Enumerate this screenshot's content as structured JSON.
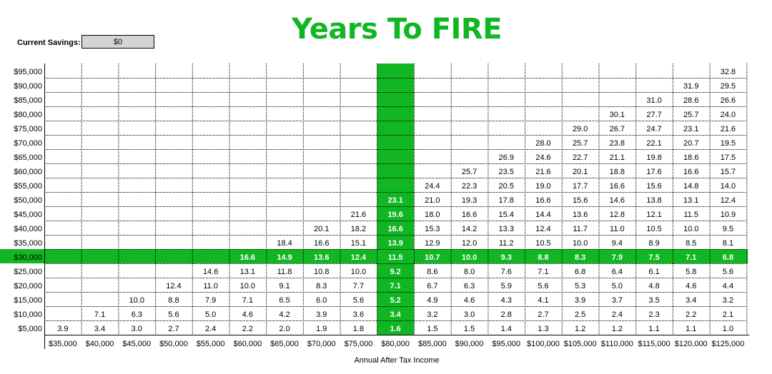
{
  "page_title": "Years To FIRE",
  "savings": {
    "label": "Current Savings:",
    "value": "$0"
  },
  "colors": {
    "highlight": "#11b623",
    "title": "#11b623"
  },
  "chart_data": {
    "type": "table",
    "title": "Years To FIRE",
    "xlabel": "Annual After Tax Income",
    "ylabel": "",
    "x": [
      "$35,000",
      "$40,000",
      "$45,000",
      "$50,000",
      "$55,000",
      "$60,000",
      "$65,000",
      "$70,000",
      "$75,000",
      "$80,000",
      "$85,000",
      "$90,000",
      "$95,000",
      "$100,000",
      "$105,000",
      "$110,000",
      "$115,000",
      "$120,000",
      "$125,000"
    ],
    "y": [
      "$95,000",
      "$90,000",
      "$85,000",
      "$80,000",
      "$75,000",
      "$70,000",
      "$65,000",
      "$60,000",
      "$55,000",
      "$50,000",
      "$45,000",
      "$40,000",
      "$35,000",
      "$30,000",
      "$25,000",
      "$20,000",
      "$15,000",
      "$10,000",
      "$5,000"
    ],
    "highlight_column": "$80,000",
    "highlight_row": "$30,000",
    "values": [
      [
        null,
        null,
        null,
        null,
        null,
        null,
        null,
        null,
        null,
        null,
        null,
        null,
        null,
        null,
        null,
        null,
        null,
        null,
        32.8
      ],
      [
        null,
        null,
        null,
        null,
        null,
        null,
        null,
        null,
        null,
        null,
        null,
        null,
        null,
        null,
        null,
        null,
        null,
        31.9,
        29.5
      ],
      [
        null,
        null,
        null,
        null,
        null,
        null,
        null,
        null,
        null,
        null,
        null,
        null,
        null,
        null,
        null,
        null,
        31.0,
        28.6,
        26.6
      ],
      [
        null,
        null,
        null,
        null,
        null,
        null,
        null,
        null,
        null,
        null,
        null,
        null,
        null,
        null,
        null,
        30.1,
        27.7,
        25.7,
        24.0
      ],
      [
        null,
        null,
        null,
        null,
        null,
        null,
        null,
        null,
        null,
        null,
        null,
        null,
        null,
        null,
        29.0,
        26.7,
        24.7,
        23.1,
        21.6
      ],
      [
        null,
        null,
        null,
        null,
        null,
        null,
        null,
        null,
        null,
        null,
        null,
        null,
        null,
        28.0,
        25.7,
        23.8,
        22.1,
        20.7,
        19.5
      ],
      [
        null,
        null,
        null,
        null,
        null,
        null,
        null,
        null,
        null,
        null,
        null,
        null,
        26.9,
        24.6,
        22.7,
        21.1,
        19.8,
        18.6,
        17.5
      ],
      [
        null,
        null,
        null,
        null,
        null,
        null,
        null,
        null,
        null,
        null,
        null,
        25.7,
        23.5,
        21.6,
        20.1,
        18.8,
        17.6,
        16.6,
        15.7
      ],
      [
        null,
        null,
        null,
        null,
        null,
        null,
        null,
        null,
        null,
        null,
        24.4,
        22.3,
        20.5,
        19.0,
        17.7,
        16.6,
        15.6,
        14.8,
        14.0
      ],
      [
        null,
        null,
        null,
        null,
        null,
        null,
        null,
        null,
        null,
        23.1,
        21.0,
        19.3,
        17.8,
        16.6,
        15.6,
        14.6,
        13.8,
        13.1,
        12.4
      ],
      [
        null,
        null,
        null,
        null,
        null,
        null,
        null,
        null,
        21.6,
        19.6,
        18.0,
        16.6,
        15.4,
        14.4,
        13.6,
        12.8,
        12.1,
        11.5,
        10.9
      ],
      [
        null,
        null,
        null,
        null,
        null,
        null,
        null,
        20.1,
        18.2,
        16.6,
        15.3,
        14.2,
        13.3,
        12.4,
        11.7,
        11.0,
        10.5,
        10.0,
        9.5
      ],
      [
        null,
        null,
        null,
        null,
        null,
        null,
        18.4,
        16.6,
        15.1,
        13.9,
        12.9,
        12.0,
        11.2,
        10.5,
        10.0,
        9.4,
        8.9,
        8.5,
        8.1
      ],
      [
        null,
        null,
        null,
        null,
        null,
        16.6,
        14.9,
        13.6,
        12.4,
        11.5,
        10.7,
        10.0,
        9.3,
        8.8,
        8.3,
        7.9,
        7.5,
        7.1,
        6.8
      ],
      [
        null,
        null,
        null,
        null,
        14.6,
        13.1,
        11.8,
        10.8,
        10.0,
        9.2,
        8.6,
        8.0,
        7.6,
        7.1,
        6.8,
        6.4,
        6.1,
        5.8,
        5.6
      ],
      [
        null,
        null,
        null,
        12.4,
        11.0,
        10.0,
        9.1,
        8.3,
        7.7,
        7.1,
        6.7,
        6.3,
        5.9,
        5.6,
        5.3,
        5.0,
        4.8,
        4.6,
        4.4
      ],
      [
        null,
        null,
        10.0,
        8.8,
        7.9,
        7.1,
        6.5,
        6.0,
        5.6,
        5.2,
        4.9,
        4.6,
        4.3,
        4.1,
        3.9,
        3.7,
        3.5,
        3.4,
        3.2
      ],
      [
        null,
        7.1,
        6.3,
        5.6,
        5.0,
        4.6,
        4.2,
        3.9,
        3.6,
        3.4,
        3.2,
        3.0,
        2.8,
        2.7,
        2.5,
        2.4,
        2.3,
        2.2,
        2.1
      ],
      [
        3.9,
        3.4,
        3.0,
        2.7,
        2.4,
        2.2,
        2.0,
        1.9,
        1.8,
        1.6,
        1.5,
        1.5,
        1.4,
        1.3,
        1.2,
        1.2,
        1.1,
        1.1,
        1.0
      ]
    ]
  }
}
